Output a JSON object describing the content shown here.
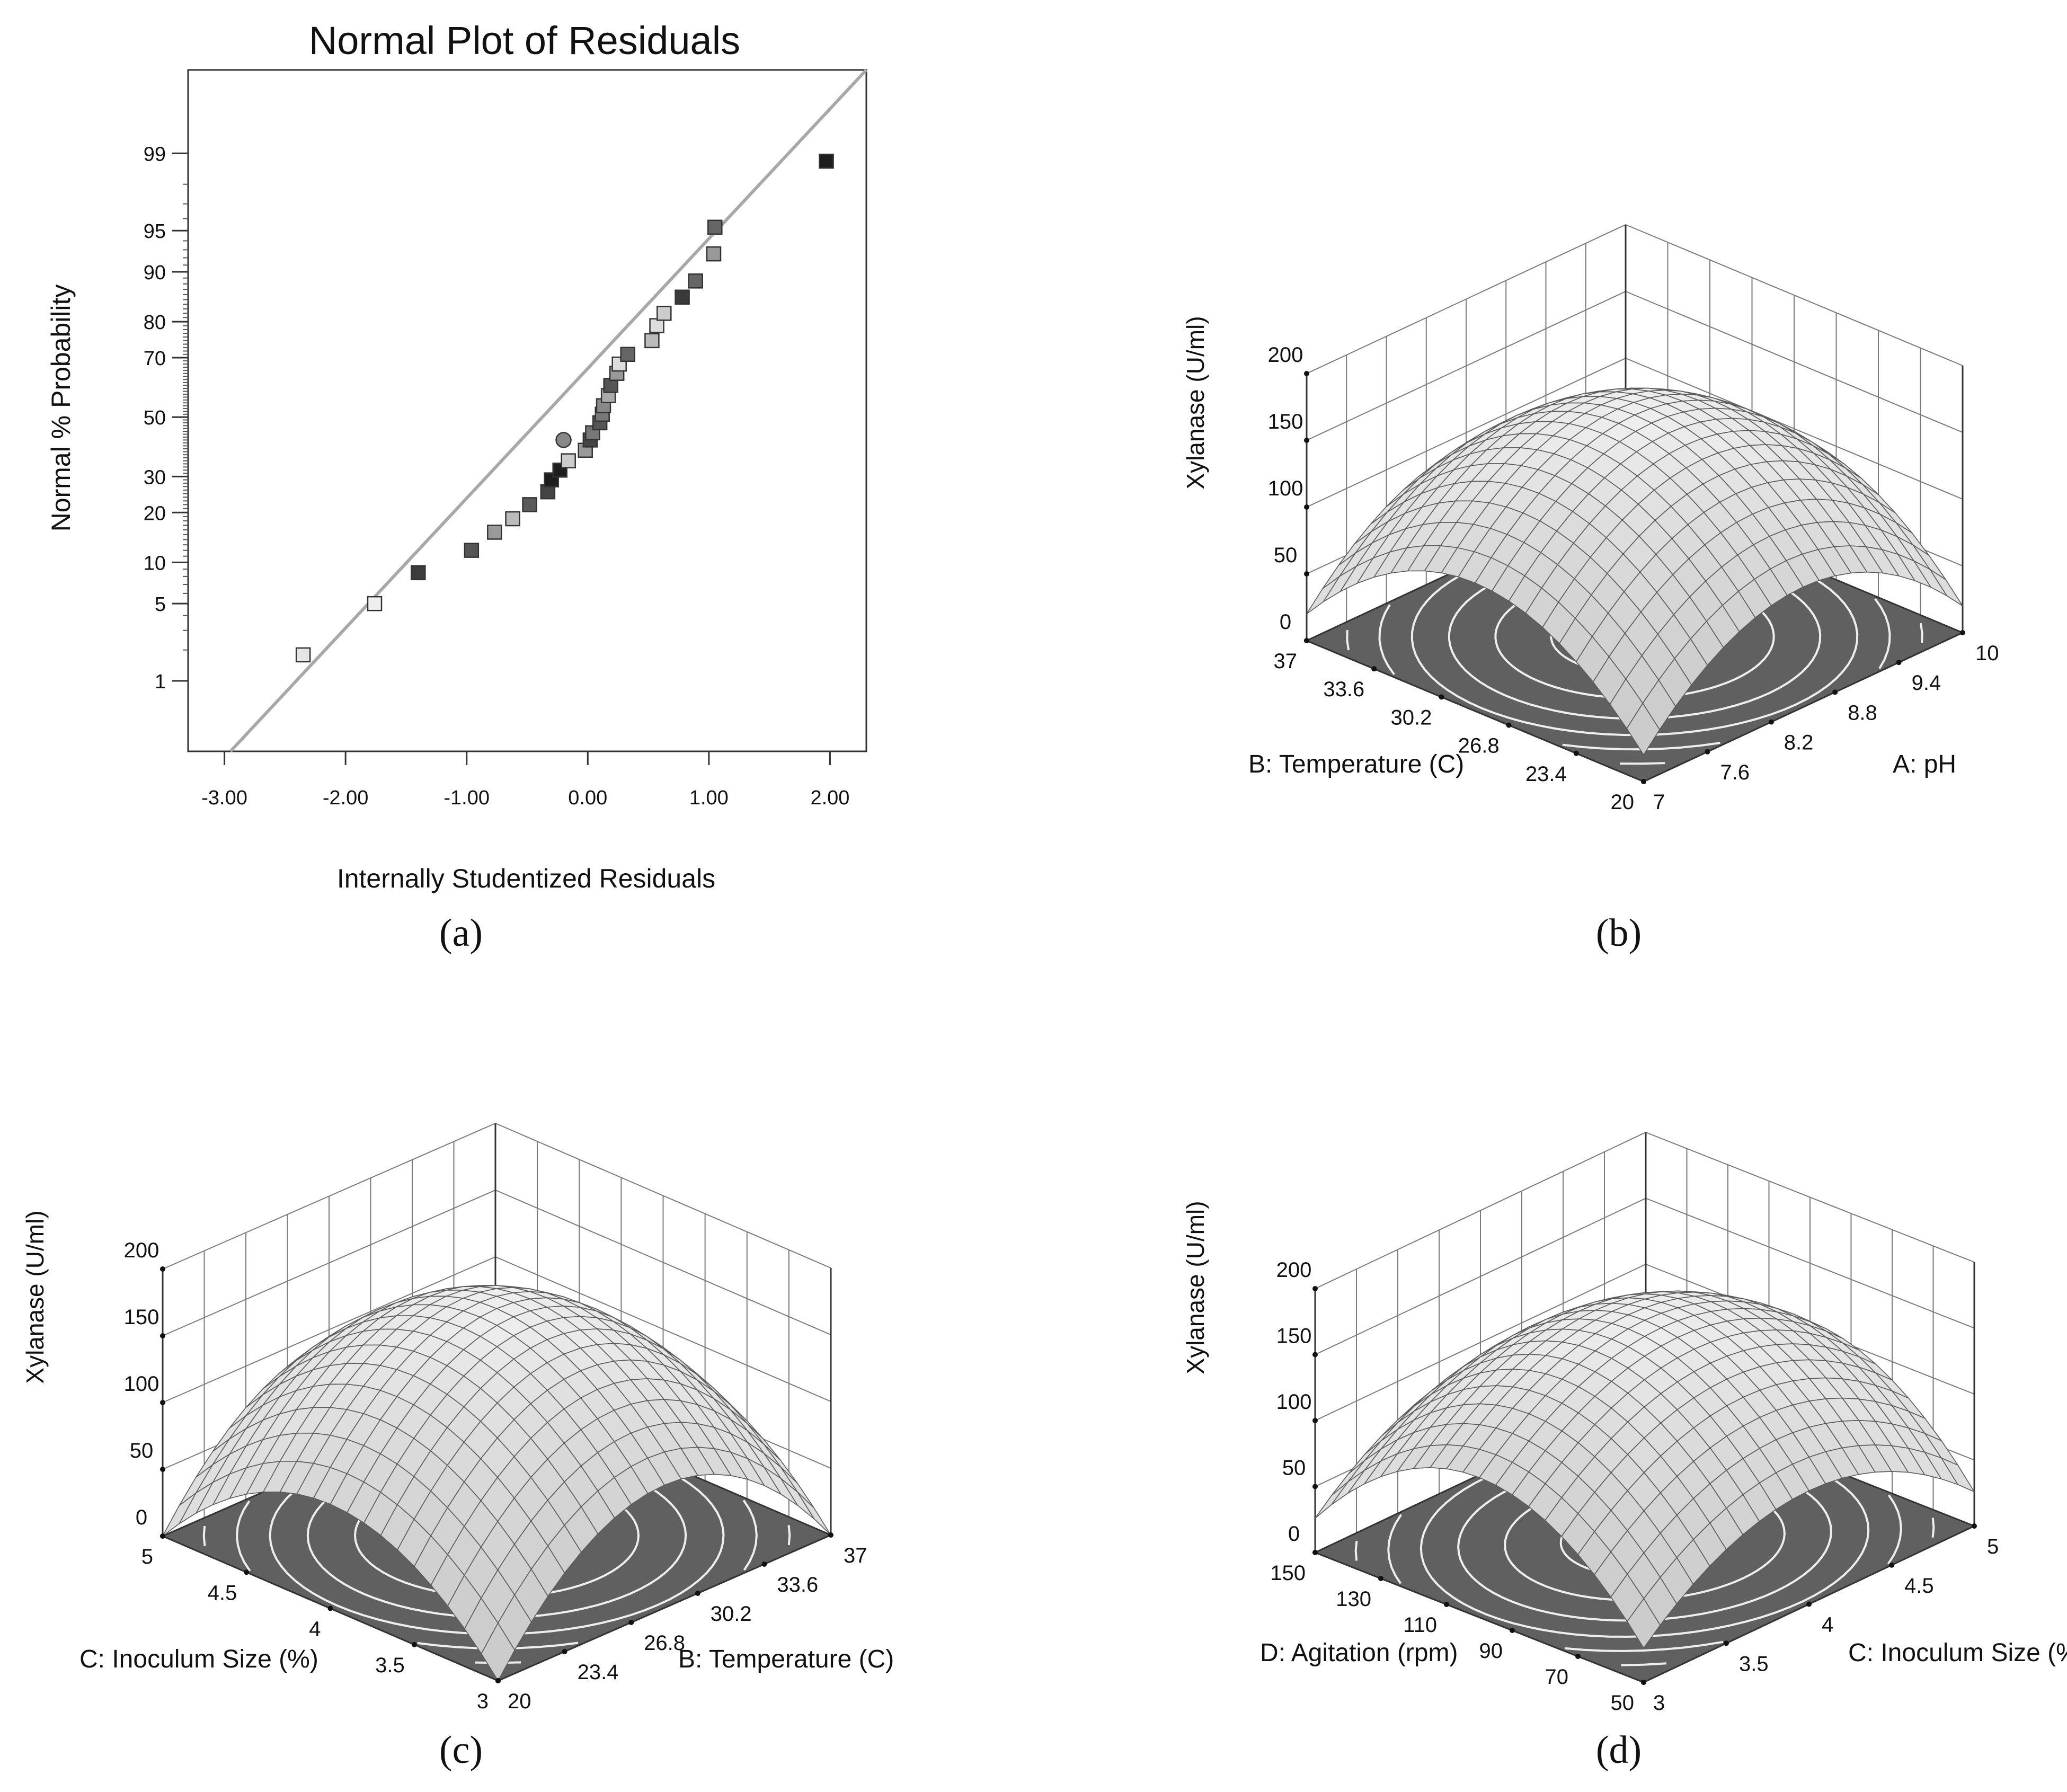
{
  "figure": {
    "panel_labels": [
      "(a)",
      "(b)",
      "(c)",
      "(d)"
    ]
  },
  "chart_data": [
    {
      "type": "scatter",
      "panel": "(a)",
      "title": "Normal Plot of Residuals",
      "xlabel": "Internally Studentized Residuals",
      "ylabel": "Normal % Probability",
      "x_ticks": [
        "-3.00",
        "-2.00",
        "-1.00",
        "0.00",
        "1.00",
        "2.00"
      ],
      "x_tick_values": [
        -3,
        -2,
        -1,
        0,
        1,
        2
      ],
      "xlim": [
        -3.3,
        2.3
      ],
      "y_ticks": [
        "1",
        "5",
        "10",
        "20",
        "30",
        "50",
        "70",
        "80",
        "90",
        "95",
        "99"
      ],
      "y_tick_values": [
        1,
        5,
        10,
        20,
        30,
        50,
        70,
        80,
        90,
        95,
        99
      ],
      "ylim_percent": [
        0.16,
        99.89
      ],
      "reference_line": {
        "x1": -2.95,
        "y1": 0.16,
        "x2": 2.3,
        "y2": 99.89
      },
      "points": [
        {
          "x": -2.35,
          "y": 1.8,
          "shade": "#e6e6e6"
        },
        {
          "x": -1.76,
          "y": 5.0,
          "shade": "#eeeeee"
        },
        {
          "x": -1.4,
          "y": 8.5,
          "shade": "#3c3c3c"
        },
        {
          "x": -0.96,
          "y": 12.0,
          "shade": "#555555"
        },
        {
          "x": -0.77,
          "y": 15.5,
          "shade": "#999999"
        },
        {
          "x": -0.62,
          "y": 18.5,
          "shade": "#bbbbbb"
        },
        {
          "x": -0.48,
          "y": 22.0,
          "shade": "#5a5a5a"
        },
        {
          "x": -0.33,
          "y": 25.5,
          "shade": "#444444"
        },
        {
          "x": -0.3,
          "y": 29.0,
          "shade": "#1e1e1e"
        },
        {
          "x": -0.23,
          "y": 32.0,
          "shade": "#1e1e1e"
        },
        {
          "x": -0.16,
          "y": 35.0,
          "shade": "#cccccc"
        },
        {
          "x": -0.2,
          "y": 42.0,
          "shade": "#888888",
          "marker": "circle"
        },
        {
          "x": -0.02,
          "y": 38.5,
          "shade": "#999999"
        },
        {
          "x": 0.02,
          "y": 42.0,
          "shade": "#444444"
        },
        {
          "x": 0.04,
          "y": 44.5,
          "shade": "#777777"
        },
        {
          "x": 0.1,
          "y": 48.0,
          "shade": "#555555"
        },
        {
          "x": 0.12,
          "y": 51.0,
          "shade": "#777777"
        },
        {
          "x": 0.13,
          "y": 54.0,
          "shade": "#888888"
        },
        {
          "x": 0.17,
          "y": 57.5,
          "shade": "#aaaaaa"
        },
        {
          "x": 0.19,
          "y": 61.0,
          "shade": "#555555"
        },
        {
          "x": 0.24,
          "y": 65.0,
          "shade": "#999999"
        },
        {
          "x": 0.26,
          "y": 68.0,
          "shade": "#dddddd"
        },
        {
          "x": 0.33,
          "y": 71.0,
          "shade": "#666666"
        },
        {
          "x": 0.53,
          "y": 75.0,
          "shade": "#bbbbbb"
        },
        {
          "x": 0.57,
          "y": 79.0,
          "shade": "#dddddd"
        },
        {
          "x": 0.63,
          "y": 82.0,
          "shade": "#cccccc"
        },
        {
          "x": 0.78,
          "y": 85.5,
          "shade": "#3a3a3a"
        },
        {
          "x": 0.89,
          "y": 88.5,
          "shade": "#666666"
        },
        {
          "x": 1.04,
          "y": 92.5,
          "shade": "#999999"
        },
        {
          "x": 1.05,
          "y": 95.3,
          "shade": "#666666"
        },
        {
          "x": 1.97,
          "y": 98.8,
          "shade": "#1e1e1e"
        }
      ]
    },
    {
      "type": "surface3d",
      "panel": "(b)",
      "zlabel": "Xylanase (U/ml)",
      "z_ticks": [
        "0",
        "50",
        "100",
        "150",
        "200"
      ],
      "zlim": [
        0,
        200
      ],
      "right_axis": {
        "label": "A: pH",
        "ticks": [
          "7",
          "7.6",
          "8.2",
          "8.8",
          "9.4",
          "10"
        ]
      },
      "left_axis": {
        "label": "B: Temperature (C)",
        "ticks": [
          "20",
          "23.4",
          "26.8",
          "30.2",
          "33.6",
          "37"
        ]
      },
      "surface": {
        "peak": 166,
        "z_right_end": 96,
        "z_left_end": 90,
        "z_corner": 26
      }
    },
    {
      "type": "surface3d",
      "panel": "(c)",
      "zlabel": "Xylanase (U/ml)",
      "z_ticks": [
        "0",
        "50",
        "100",
        "150",
        "200"
      ],
      "zlim": [
        0,
        200
      ],
      "right_axis": {
        "label": "B: Temperature (C)",
        "ticks": [
          "20",
          "23.4",
          "26.8",
          "30.2",
          "33.6",
          "37"
        ]
      },
      "left_axis": {
        "label": "C: Inoculum Size (%)",
        "ticks": [
          "3",
          "3.5",
          "4",
          "4.5",
          "5"
        ]
      },
      "surface": {
        "peak": 170,
        "z_right_end": 78,
        "z_left_end": 92,
        "z_corner": 20
      }
    },
    {
      "type": "surface3d",
      "panel": "(d)",
      "zlabel": "Xylanase (U/ml)",
      "z_ticks": [
        "0",
        "50",
        "100",
        "150",
        "200"
      ],
      "zlim": [
        0,
        200
      ],
      "right_axis": {
        "label": "C: Inoculum Size (%)",
        "ticks": [
          "3",
          "3.5",
          "4",
          "4.5",
          "5"
        ]
      },
      "left_axis": {
        "label": "D: Agitation (rpm)",
        "ticks": [
          "50",
          "70",
          "90",
          "110",
          "130",
          "150"
        ]
      },
      "surface": {
        "peak": 166,
        "z_right_end": 106,
        "z_left_end": 86,
        "z_corner": 42
      }
    }
  ]
}
